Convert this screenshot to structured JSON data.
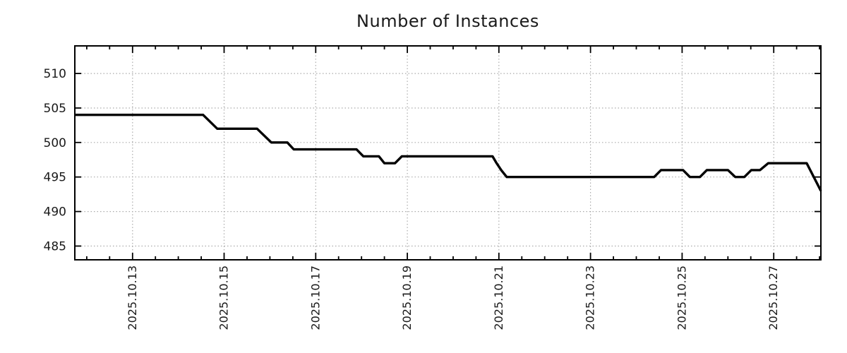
{
  "title": "Number of Instances",
  "colors": {
    "line": "#000000",
    "grid": "#ababab",
    "border": "#000000",
    "tick": "#000000",
    "text": "#1a1a1a",
    "background": "#ffffff"
  },
  "chart_data": {
    "type": "line",
    "title": "Number of Instances",
    "xlabel": "",
    "ylabel": "",
    "legend": "none",
    "grid": "dotted",
    "x_unit": "day of October 2025 (decimal day-of-month)",
    "xlim": [
      11.74,
      28.03
    ],
    "ylim": [
      483,
      514
    ],
    "y_ticks": [
      485,
      490,
      495,
      500,
      505,
      510
    ],
    "y_tick_labels": [
      "485",
      "490",
      "495",
      "500",
      "505",
      "510"
    ],
    "x_major_ticks": [
      13,
      15,
      17,
      19,
      21,
      23,
      25,
      27
    ],
    "x_tick_labels": [
      "2025.10.13",
      "2025.10.15",
      "2025.10.17",
      "2025.10.19",
      "2025.10.21",
      "2025.10.23",
      "2025.10.25",
      "2025.10.27"
    ],
    "x_minor_step": 0.5,
    "series_name": "instances",
    "points": [
      [
        11.74,
        504
      ],
      [
        14.54,
        504
      ],
      [
        14.85,
        502
      ],
      [
        15.72,
        502
      ],
      [
        16.03,
        500
      ],
      [
        16.38,
        500
      ],
      [
        16.52,
        499
      ],
      [
        17.89,
        499
      ],
      [
        18.04,
        498
      ],
      [
        18.38,
        498
      ],
      [
        18.5,
        497
      ],
      [
        18.73,
        497
      ],
      [
        18.88,
        498
      ],
      [
        20.86,
        498
      ],
      [
        20.95,
        497
      ],
      [
        21.05,
        496
      ],
      [
        21.17,
        495
      ],
      [
        24.39,
        495
      ],
      [
        24.54,
        496
      ],
      [
        25.02,
        496
      ],
      [
        25.17,
        495
      ],
      [
        25.39,
        495
      ],
      [
        25.54,
        496
      ],
      [
        26.0,
        496
      ],
      [
        26.16,
        495
      ],
      [
        26.36,
        495
      ],
      [
        26.51,
        496
      ],
      [
        26.7,
        496
      ],
      [
        26.88,
        497
      ],
      [
        27.72,
        497
      ],
      [
        28.03,
        493
      ]
    ]
  }
}
